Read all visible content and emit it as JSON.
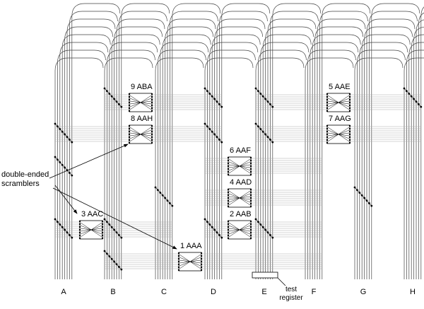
{
  "columns": [
    "A",
    "B",
    "C",
    "D",
    "E",
    "F",
    "G",
    "H"
  ],
  "scramblers": [
    "9 ABA",
    "8 AAH",
    "6 AAF",
    "4 AAD",
    "2 AAB",
    "1 AAA",
    "3 AAC",
    "5 AAE",
    "7 AAG"
  ],
  "annotation": {
    "lines": [
      "double-ended",
      "scramblers"
    ]
  },
  "test_register": {
    "lines": [
      "test",
      "register"
    ]
  }
}
